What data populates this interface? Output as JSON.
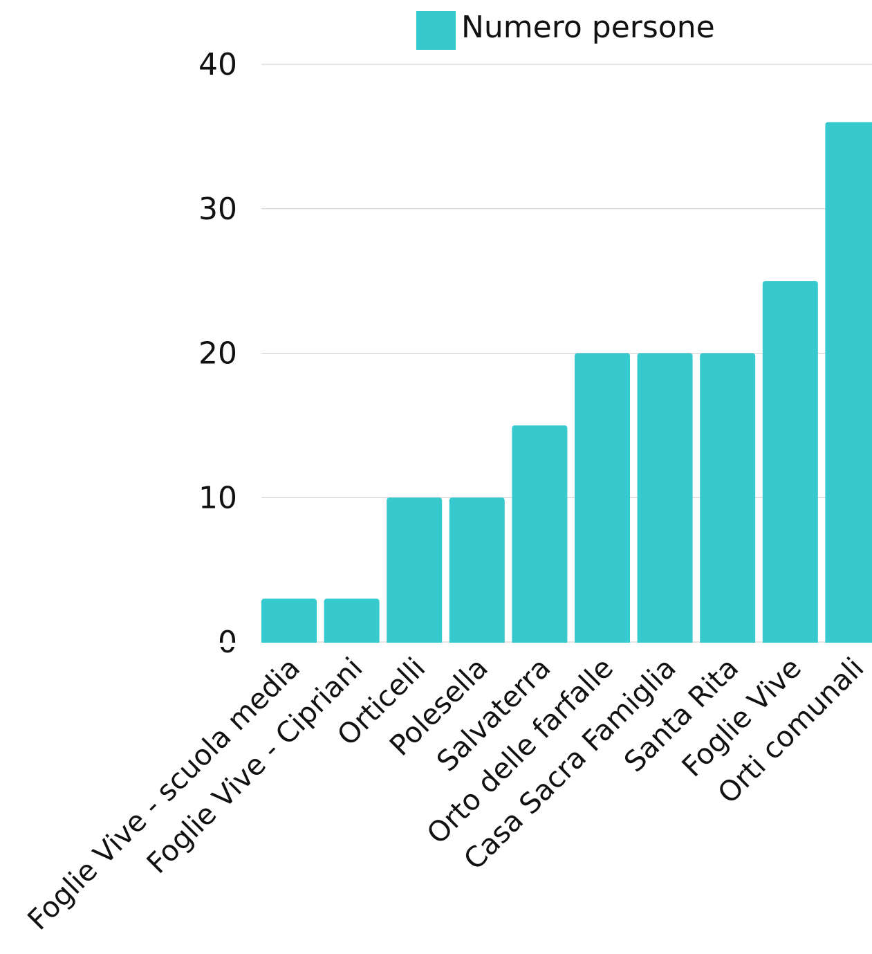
{
  "chart_data": {
    "type": "bar",
    "series": [
      {
        "name": "Numero persone",
        "color": "#36C9CD",
        "values": [
          3,
          3,
          10,
          10,
          15,
          20,
          20,
          20,
          25,
          36
        ]
      }
    ],
    "categories": [
      "Foglie Vive - scuola media",
      "Foglie Vive - Cipriani",
      "Orticelli",
      "Polesella",
      "Salvaterra",
      "Orto delle farfalle",
      "Casa Sacra Famiglia",
      "Santa Rita",
      "Foglie Vive",
      "Orti comunali"
    ],
    "yticks": [
      "0",
      "10",
      "20",
      "30",
      "40"
    ],
    "ylim": [
      0,
      40
    ],
    "grid": true,
    "legend_position": "top-center",
    "gridline_color": "#cccccc"
  }
}
